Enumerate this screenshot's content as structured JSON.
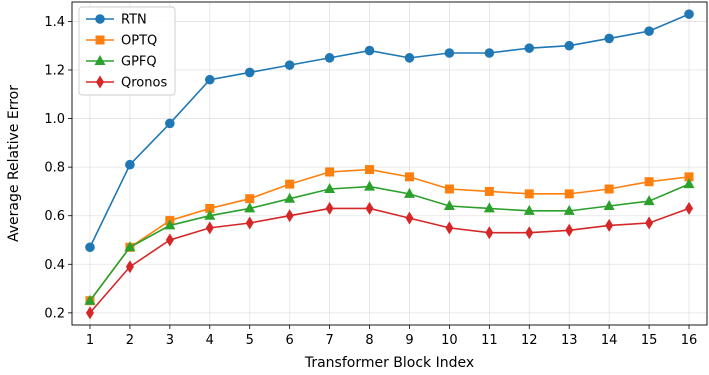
{
  "chart_data": {
    "type": "line",
    "xlabel": "Transformer Block Index",
    "ylabel": "Average Relative Error",
    "x": [
      1,
      2,
      3,
      4,
      5,
      6,
      7,
      8,
      9,
      10,
      11,
      12,
      13,
      14,
      15,
      16
    ],
    "xlim": [
      0.55,
      16.45
    ],
    "ylim": [
      0.15,
      1.48
    ],
    "yticks": [
      0.2,
      0.4,
      0.6,
      0.8,
      1.0,
      1.2,
      1.4
    ],
    "ytick_labels": [
      "0.2",
      "0.4",
      "0.6",
      "0.8",
      "1.0",
      "1.2",
      "1.4"
    ],
    "grid": true,
    "legend_position": "top-left",
    "series": [
      {
        "name": "RTN",
        "color": "#1f77b4",
        "marker": "circle",
        "values": [
          0.47,
          0.81,
          0.98,
          1.16,
          1.19,
          1.22,
          1.25,
          1.28,
          1.25,
          1.27,
          1.27,
          1.29,
          1.3,
          1.33,
          1.36,
          1.43
        ]
      },
      {
        "name": "OPTQ",
        "color": "#ff7f0e",
        "marker": "square",
        "values": [
          0.25,
          0.47,
          0.58,
          0.63,
          0.67,
          0.73,
          0.78,
          0.79,
          0.76,
          0.71,
          0.7,
          0.69,
          0.69,
          0.71,
          0.74,
          0.76
        ]
      },
      {
        "name": "GPFQ",
        "color": "#2ca02c",
        "marker": "triangle",
        "values": [
          0.25,
          0.47,
          0.56,
          0.6,
          0.63,
          0.67,
          0.71,
          0.72,
          0.69,
          0.64,
          0.63,
          0.62,
          0.62,
          0.64,
          0.66,
          0.73
        ]
      },
      {
        "name": "Qronos",
        "color": "#d62728",
        "marker": "diamond",
        "values": [
          0.2,
          0.39,
          0.5,
          0.55,
          0.57,
          0.6,
          0.63,
          0.63,
          0.59,
          0.55,
          0.53,
          0.53,
          0.54,
          0.56,
          0.57,
          0.63
        ]
      }
    ]
  }
}
